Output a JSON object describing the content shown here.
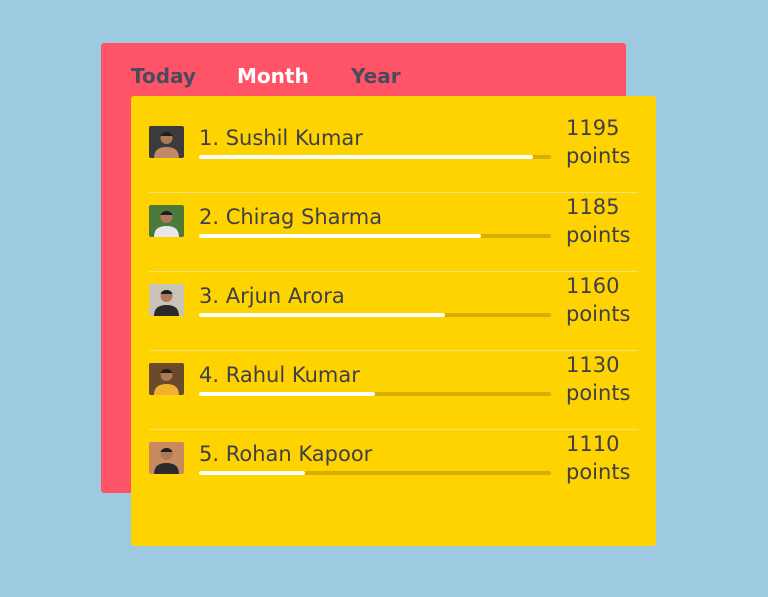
{
  "tabs": [
    {
      "label": "Today",
      "active": false
    },
    {
      "label": "Month",
      "active": true
    },
    {
      "label": "Year",
      "active": false
    }
  ],
  "leaderboard": [
    {
      "name": "1. Sushil Kumar",
      "points": "1195",
      "points_unit": "points",
      "progress": 0.95,
      "avatar_color": "#3b3b3b",
      "avatar_accent": "#c08a64"
    },
    {
      "name": "2. Chirag Sharma",
      "points": "1185",
      "points_unit": "points",
      "progress": 0.8,
      "avatar_color": "#4b7a3a",
      "avatar_accent": "#e8e8e8"
    },
    {
      "name": "3. Arjun Arora",
      "points": "1160",
      "points_unit": "points",
      "progress": 0.7,
      "avatar_color": "#c9c3b8",
      "avatar_accent": "#2a2a2a"
    },
    {
      "name": "4. Rahul Kumar",
      "points": "1130",
      "points_unit": "points",
      "progress": 0.5,
      "avatar_color": "#6a4a2a",
      "avatar_accent": "#f0b030"
    },
    {
      "name": "5. Rohan Kapoor",
      "points": "1110",
      "points_unit": "points",
      "progress": 0.3,
      "avatar_color": "#c98a60",
      "avatar_accent": "#2c2c2c"
    }
  ],
  "colors": {
    "background": "#9ecae1",
    "back_card": "#ff5468",
    "front_card": "#ffd300",
    "tab_inactive": "#4a4a5e",
    "tab_active": "#ffffff",
    "bar_track": "#d6b000",
    "bar_fill": "#ffffff"
  }
}
